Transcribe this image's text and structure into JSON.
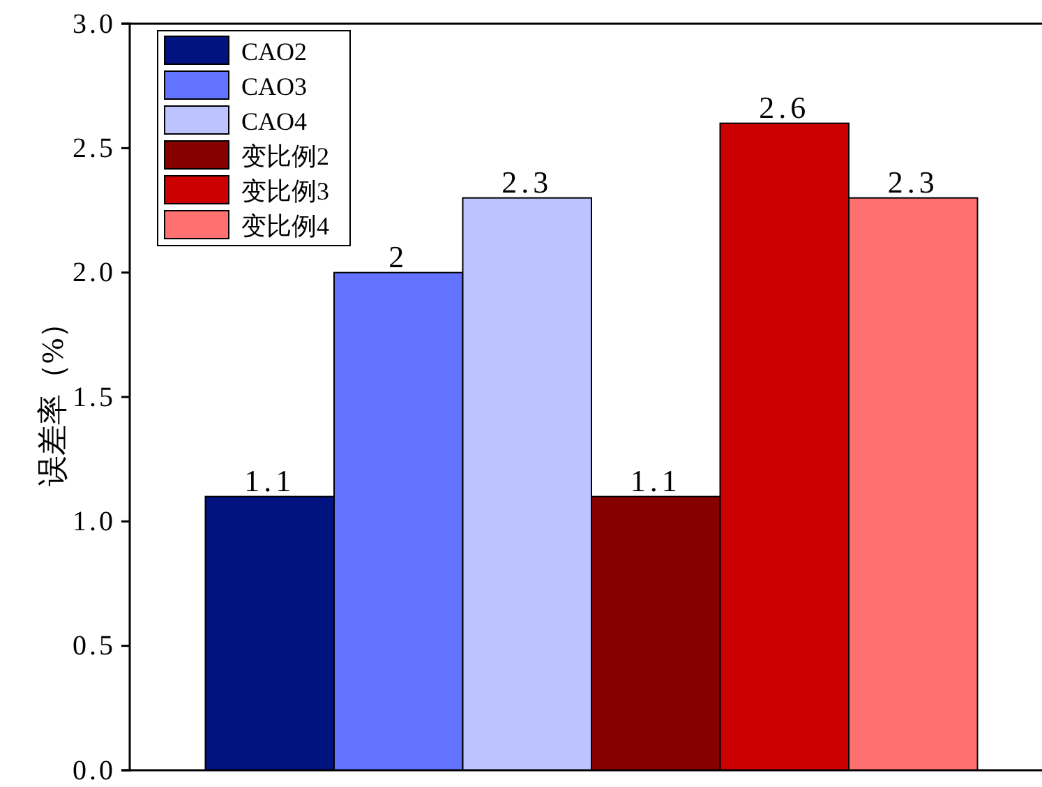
{
  "chart_data": {
    "type": "bar",
    "ylabel": "误差率（%）",
    "categories": [
      null
    ],
    "ylim": [
      0,
      3
    ],
    "yticks": [
      {
        "value": 0,
        "label": "0.0"
      },
      {
        "value": 0.5,
        "label": "0.5"
      },
      {
        "value": 1,
        "label": "1.0"
      },
      {
        "value": 1.5,
        "label": "1.5"
      },
      {
        "value": 2,
        "label": "2.0"
      },
      {
        "value": 2.5,
        "label": "2.5"
      },
      {
        "value": 3,
        "label": "3.0"
      }
    ],
    "data_labels": true,
    "legend": "top left",
    "grid": false,
    "series": [
      {
        "name": "CAO2",
        "color": "#00137f",
        "values": [
          1.1
        ]
      },
      {
        "name": "CAO3",
        "color": "#6173ff",
        "values": [
          2
        ]
      },
      {
        "name": "CAO4",
        "color": "#bcc3ff",
        "values": [
          2.3
        ]
      },
      {
        "name": "变比例2",
        "color": "#870000",
        "values": [
          1.1
        ]
      },
      {
        "name": "变比例3",
        "color": "#cc0000",
        "values": [
          2.6
        ]
      },
      {
        "name": "变比例4",
        "color": "#ff7070",
        "values": [
          2.3
        ]
      }
    ]
  }
}
